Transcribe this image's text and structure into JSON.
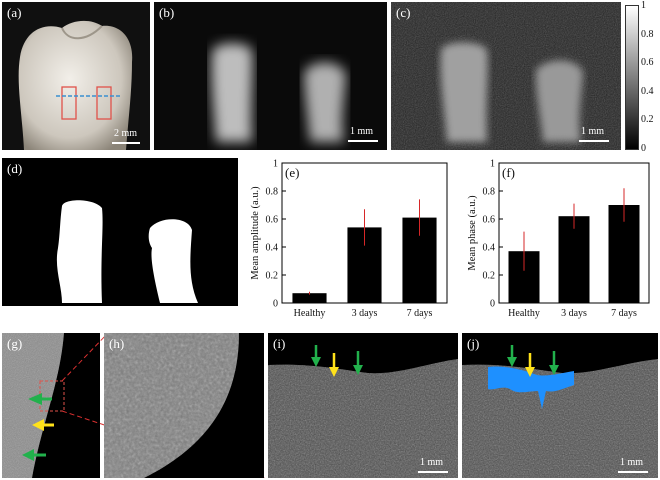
{
  "panels": {
    "a": {
      "label": "(a)",
      "scale": "2 mm"
    },
    "b": {
      "label": "(b)",
      "scale": "1 mm"
    },
    "c": {
      "label": "(c)",
      "scale": "1 mm"
    },
    "d": {
      "label": "(d)"
    },
    "e": {
      "label": "(e)"
    },
    "f": {
      "label": "(f)"
    },
    "g": {
      "label": "(g)"
    },
    "h": {
      "label": "(h)"
    },
    "i": {
      "label": "(i)",
      "scale": "1 mm"
    },
    "j": {
      "label": "(j)",
      "scale": "1 mm"
    }
  },
  "colorbar": {
    "ticks": [
      "1",
      "0.8",
      "0.6",
      "0.4",
      "0.2",
      "0"
    ]
  },
  "colors": {
    "bar": "#000000",
    "error": "#d62728",
    "arrow_green": "#22b14c",
    "arrow_yellow": "#ffe21a",
    "lesion_blue": "#1e90ff",
    "roi_red": "#e0524a",
    "roi_line": "#3a8fd0"
  },
  "chart_data": [
    {
      "type": "bar",
      "title": "",
      "xlabel": "",
      "ylabel": "Mean amplitude (a.u.)",
      "categories": [
        "Healthy",
        "3 days",
        "7 days"
      ],
      "values": [
        0.07,
        0.54,
        0.61
      ],
      "errors": [
        0.01,
        0.13,
        0.13
      ],
      "ylim": [
        0,
        1
      ],
      "yticks": [
        "0",
        "0.2",
        "0.4",
        "0.6",
        "0.8",
        "1"
      ]
    },
    {
      "type": "bar",
      "title": "",
      "xlabel": "",
      "ylabel": "Mean phase (a.u.)",
      "categories": [
        "Healthy",
        "3 days",
        "7 days"
      ],
      "values": [
        0.37,
        0.62,
        0.7
      ],
      "errors": [
        0.14,
        0.09,
        0.12
      ],
      "ylim": [
        0,
        1.0
      ],
      "yticks": [
        "0",
        "0.2",
        "0.4",
        "0.6",
        "0.8",
        "1"
      ]
    }
  ]
}
